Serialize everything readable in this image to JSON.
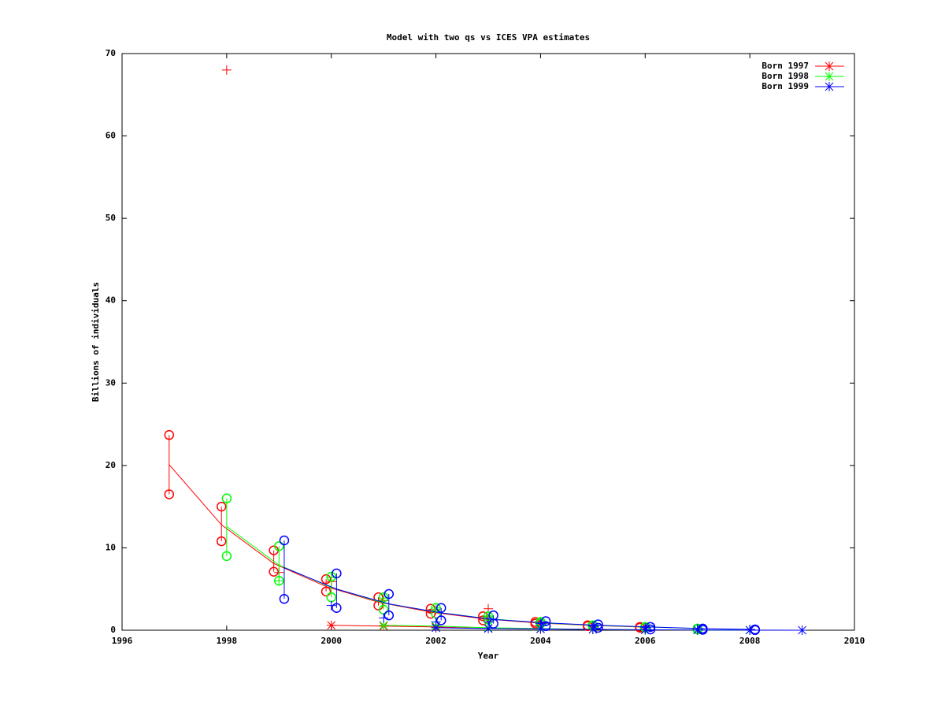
{
  "chart_data": {
    "type": "line",
    "title": "Model with two qs vs ICES VPA estimates",
    "x_label": "Year",
    "y_label": "Billions of individuals",
    "xlim": [
      1996,
      2010
    ],
    "xticks": [
      1996,
      1998,
      2000,
      2002,
      2004,
      2006,
      2008,
      2010
    ],
    "ylim": [
      0,
      70
    ],
    "yticks": [
      0,
      10,
      20,
      30,
      40,
      50,
      60,
      70
    ],
    "legend": "top-right",
    "series": [
      {
        "name": "Born 1997",
        "color": "#ff0000",
        "model": {
          "x": [
            1996.9,
            1997.9,
            1998.9,
            1999.9,
            2000.9,
            2001.9,
            2002.9,
            2003.9,
            2004.9,
            2005.9
          ],
          "values": [
            20.1,
            12.8,
            8.1,
            5.3,
            3.4,
            2.2,
            1.4,
            0.9,
            0.6,
            0.4
          ]
        },
        "survey": {
          "x": [
            1996.9,
            1997.9,
            1998.9,
            1999.9,
            2000.9,
            2001.9,
            2002.9,
            2003.9,
            2004.9,
            2005.9
          ],
          "low": [
            16.5,
            10.8,
            7.1,
            4.7,
            3.0,
            2.0,
            1.2,
            0.8,
            0.5,
            0.3
          ],
          "high": [
            23.7,
            15.0,
            9.7,
            6.2,
            4.0,
            2.6,
            1.7,
            1.0,
            0.6,
            0.4
          ]
        },
        "vpa": {
          "x": [
            1998,
            1999,
            2000,
            2001,
            2002,
            2003,
            2004,
            2005,
            2006
          ],
          "values": [
            68,
            7.0,
            5.9,
            3.6,
            2.5,
            2.6,
            1.0,
            0.6,
            0.3
          ]
        },
        "catch": {
          "x": [
            2000,
            2001,
            2002,
            2003,
            2004,
            2005,
            2006,
            2007
          ],
          "values": [
            0.6,
            0.5,
            0.4,
            0.2,
            0.15,
            0.1,
            0.05,
            0.02
          ]
        }
      },
      {
        "name": "Born 1998",
        "color": "#00ff00",
        "model": {
          "x": [
            1998,
            1999,
            2000,
            2001,
            2002,
            2003,
            2004,
            2005,
            2006,
            2007
          ],
          "values": [
            12.6,
            7.9,
            5.2,
            3.3,
            2.2,
            1.4,
            0.9,
            0.6,
            0.4,
            0.2
          ]
        },
        "survey": {
          "x": [
            1998,
            1999,
            2000,
            2001,
            2002,
            2003,
            2004,
            2005,
            2006,
            2007
          ],
          "low": [
            9.0,
            6.0,
            4.0,
            2.5,
            2.0,
            1.3,
            0.8,
            0.5,
            0.3,
            0.1
          ],
          "high": [
            16.0,
            10.2,
            6.5,
            4.0,
            2.7,
            1.7,
            1.0,
            0.6,
            0.4,
            0.2
          ]
        },
        "vpa": {
          "x": [
            1999,
            2000,
            2001,
            2002,
            2003,
            2004,
            2005,
            2006,
            2007
          ],
          "values": [
            6.0,
            6.4,
            3.9,
            2.7,
            1.6,
            0.9,
            0.6,
            0.4,
            0.2
          ]
        },
        "catch": {
          "x": [
            2001,
            2002,
            2003,
            2004,
            2005,
            2006,
            2007,
            2008
          ],
          "values": [
            0.6,
            0.5,
            0.3,
            0.2,
            0.1,
            0.05,
            0.03,
            0.01
          ]
        }
      },
      {
        "name": "Born 1999",
        "color": "#0000ff",
        "model": {
          "x": [
            1999.1,
            2000.1,
            2001.1,
            2002.1,
            2003.1,
            2004.1,
            2005.1,
            2006.1,
            2007.1,
            2008.1
          ],
          "values": [
            7.6,
            5.0,
            3.2,
            2.1,
            1.3,
            0.9,
            0.6,
            0.4,
            0.2,
            0.1
          ]
        },
        "survey": {
          "x": [
            1999.1,
            2000.1,
            2001.1,
            2002.1,
            2003.1,
            2004.1,
            2005.1,
            2006.1,
            2007.1,
            2008.1
          ],
          "low": [
            3.8,
            2.7,
            1.8,
            1.2,
            0.8,
            0.5,
            0.3,
            0.1,
            0.05,
            0.02
          ],
          "high": [
            10.9,
            6.9,
            4.4,
            2.7,
            1.8,
            1.1,
            0.7,
            0.4,
            0.2,
            0.1
          ]
        },
        "vpa": {
          "x": [
            2000,
            2001,
            2002,
            2003,
            2004,
            2005,
            2006,
            2007,
            2008
          ],
          "values": [
            3.0,
            1.5,
            1.0,
            1.0,
            0.8,
            0.5,
            0.3,
            0.2,
            0.1
          ]
        },
        "catch": {
          "x": [
            2002,
            2003,
            2004,
            2005,
            2006,
            2007,
            2008,
            2009
          ],
          "values": [
            0.3,
            0.2,
            0.15,
            0.1,
            0.05,
            0.03,
            0.01,
            0
          ]
        }
      }
    ]
  }
}
